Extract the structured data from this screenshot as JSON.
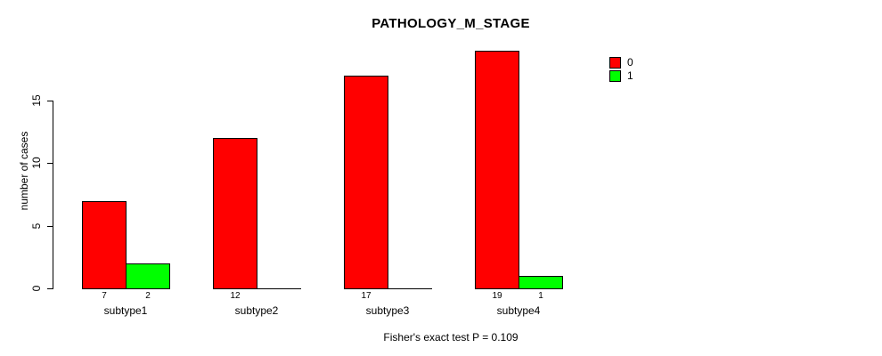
{
  "chart_data": {
    "type": "bar",
    "title": "PATHOLOGY_M_STAGE",
    "ylabel": "number of cases",
    "xlabel": "",
    "categories": [
      "subtype1",
      "subtype2",
      "subtype3",
      "subtype4"
    ],
    "series": [
      {
        "name": "0",
        "color": "#ff0000",
        "values": [
          7,
          12,
          17,
          19
        ]
      },
      {
        "name": "1",
        "color": "#00ff00",
        "values": [
          2,
          0,
          0,
          1
        ]
      }
    ],
    "yticks": [
      0,
      5,
      10,
      15
    ],
    "grid": false,
    "legend_position": "top-right",
    "annotation": "Fisher's exact test P = 0.109"
  },
  "colors": {
    "axis": "#000000",
    "background": "#ffffff",
    "series0": "#ff0000",
    "series1": "#00ff00"
  }
}
